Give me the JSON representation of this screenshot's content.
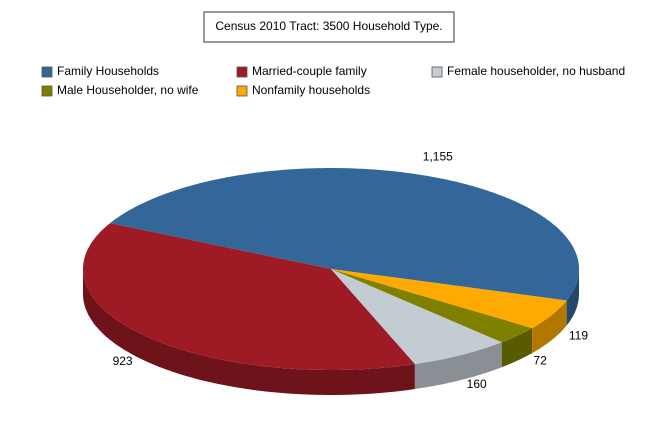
{
  "chart_data": {
    "type": "pie3d",
    "title": "Census 2010 Tract: 3500 Household Type.",
    "categories": [
      "Family Households",
      "Married-couple family",
      "Female householder, no husband",
      "Male Householder, no wife",
      "Nonfamily households"
    ],
    "values": [
      1155,
      923,
      160,
      72,
      119
    ],
    "value_labels": [
      "1,155",
      "923",
      "160",
      "72",
      "119"
    ],
    "colors": [
      "#336699",
      "#9e1b26",
      "#c4ccd3",
      "#808000",
      "#ffaa00"
    ],
    "legend": "top"
  }
}
